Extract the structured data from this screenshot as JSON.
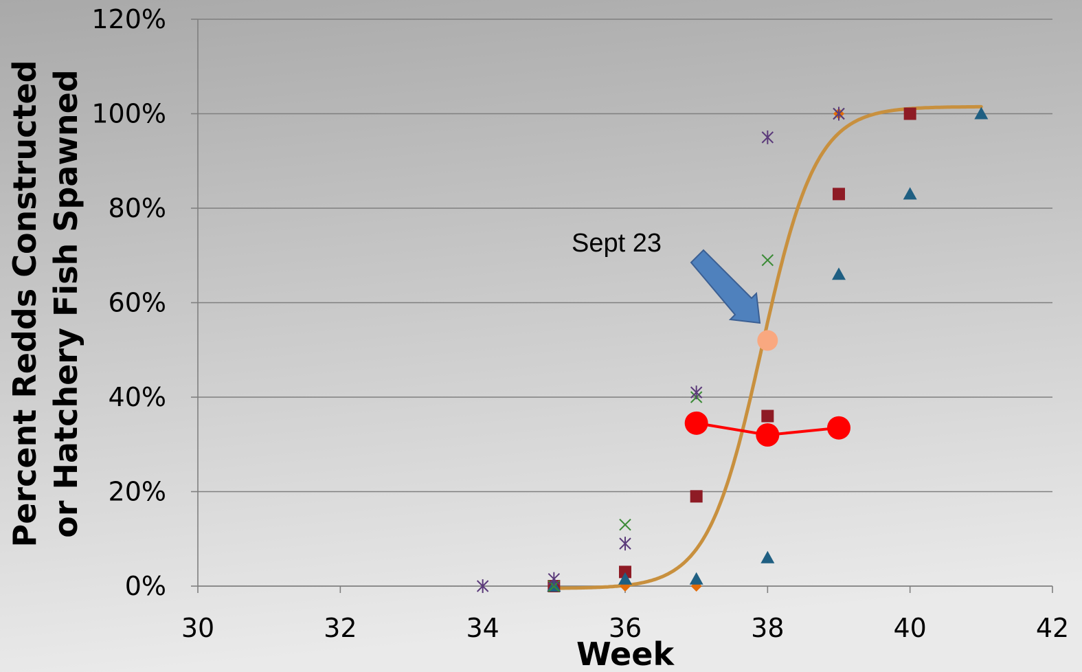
{
  "chart_data": {
    "type": "scatter",
    "xlabel": "Week",
    "ylabel_lines": [
      "Percent Redds Constructed",
      "or Hatchery Fish Spawned"
    ],
    "xlim": [
      30,
      42
    ],
    "ylim": [
      0,
      1.2
    ],
    "x_ticks": [
      30,
      32,
      34,
      36,
      38,
      40,
      42
    ],
    "x_tick_labels": [
      "30",
      "32",
      "34",
      "36",
      "38",
      "40",
      "42"
    ],
    "y_ticks": [
      0,
      0.2,
      0.4,
      0.6,
      0.8,
      1.0,
      1.2
    ],
    "y_tick_labels": [
      "0%",
      "20%",
      "40%",
      "60%",
      "80%",
      "100%",
      "120%"
    ],
    "grid": "horizontal",
    "legend": "none",
    "series": [
      {
        "marker": "diamond",
        "color": "#e36c09",
        "points": [
          [
            35,
            0.0
          ],
          [
            36,
            0.0
          ],
          [
            37,
            0.0
          ],
          [
            39,
            1.0
          ]
        ]
      },
      {
        "marker": "square",
        "color": "#8e1b25",
        "points": [
          [
            35,
            0.0
          ],
          [
            36,
            0.03
          ],
          [
            37,
            0.19
          ],
          [
            38,
            0.36
          ],
          [
            39,
            0.83
          ],
          [
            40,
            1.0
          ]
        ]
      },
      {
        "marker": "triangle",
        "color": "#1f5f82",
        "points": [
          [
            35,
            0.0
          ],
          [
            36,
            0.015
          ],
          [
            37,
            0.015
          ],
          [
            38,
            0.06
          ],
          [
            39,
            0.66
          ],
          [
            40,
            0.83
          ],
          [
            41,
            1.0
          ]
        ]
      },
      {
        "marker": "x",
        "color": "#3a8a35",
        "points": [
          [
            35,
            0.0
          ],
          [
            36,
            0.13
          ],
          [
            37,
            0.4
          ],
          [
            38,
            0.69
          ],
          [
            39,
            1.0
          ]
        ]
      },
      {
        "marker": "asterisk",
        "color": "#5b3a7a",
        "points": [
          [
            34,
            0.0
          ],
          [
            35,
            0.015
          ],
          [
            36,
            0.09
          ],
          [
            37,
            0.41
          ],
          [
            38,
            0.95
          ],
          [
            39,
            1.0
          ]
        ]
      },
      {
        "marker": "circle-line",
        "color": "#ff0000",
        "points": [
          [
            37,
            0.345
          ],
          [
            38,
            0.32
          ],
          [
            39,
            0.335
          ]
        ]
      }
    ],
    "fit_curve": {
      "type": "logistic",
      "color": "#c8903e",
      "x_range": [
        35,
        41
      ],
      "lower": -0.005,
      "upper": 1.015,
      "midpoint": 37.92,
      "scale": 0.38
    },
    "highlight_point": {
      "x": 38,
      "y": 0.52,
      "color": "#f9a880"
    },
    "annotation": {
      "text": "Sept 23",
      "arrow_color": "#4f81bd"
    }
  }
}
